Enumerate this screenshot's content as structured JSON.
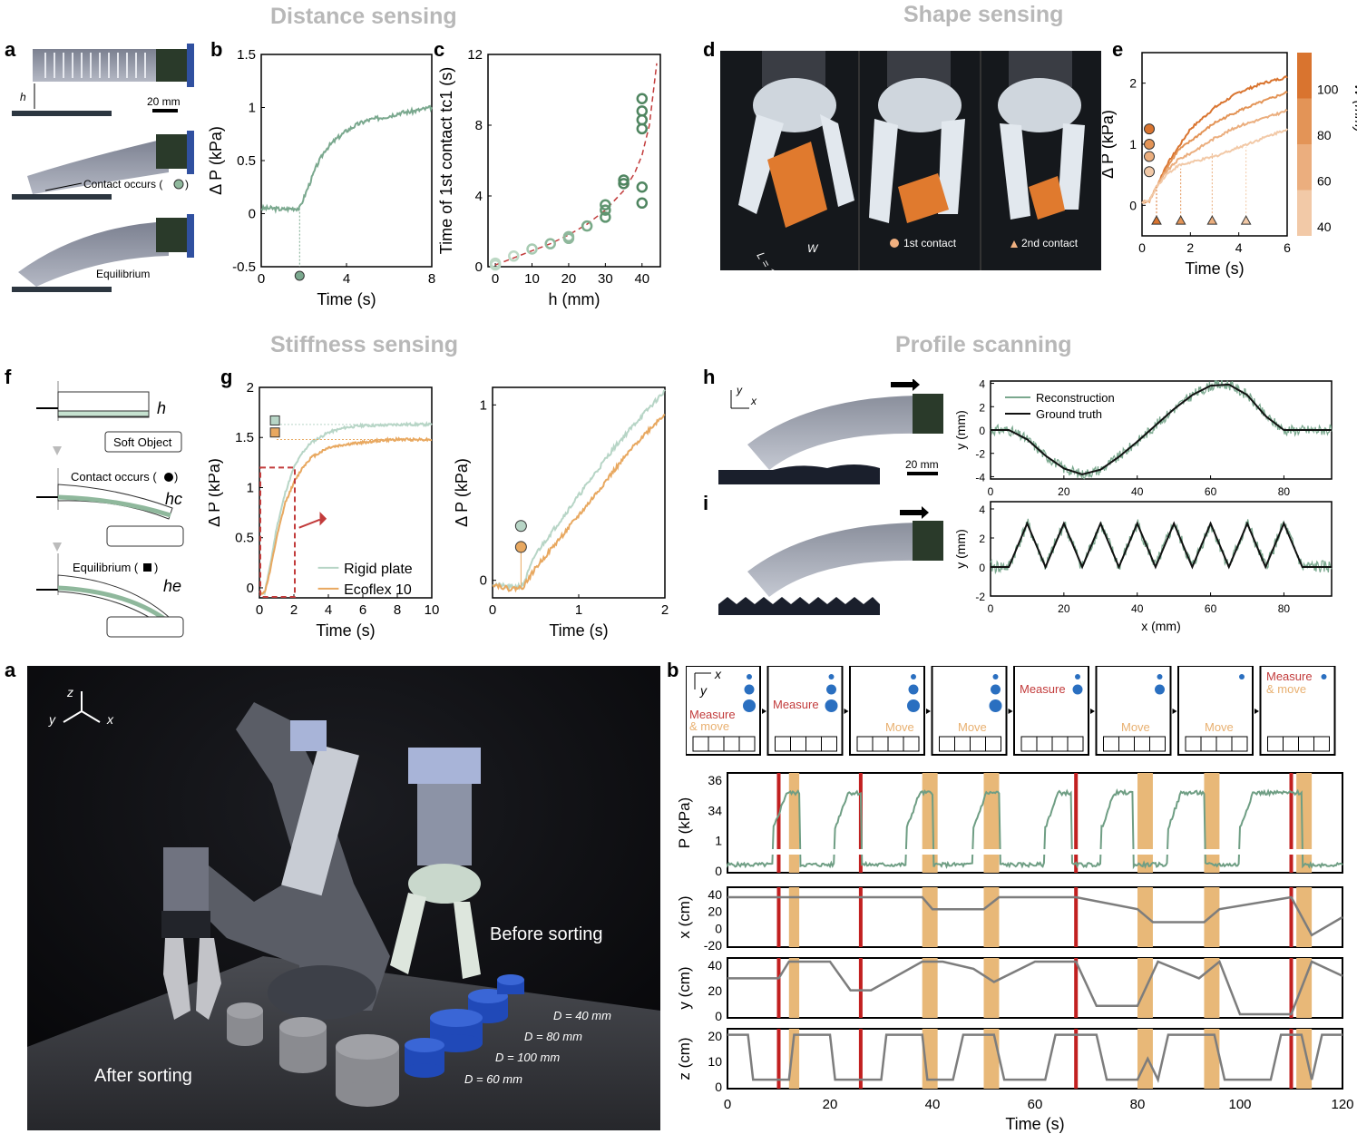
{
  "sections": {
    "distance": "Distance sensing",
    "shape": "Shape sensing",
    "stiffness": "Stiffness sensing",
    "profile": "Profile scanning"
  },
  "letters": {
    "a": "a",
    "b": "b",
    "c": "c",
    "d": "d",
    "e": "e",
    "f": "f",
    "g": "g",
    "h": "h",
    "i": "i",
    "a2": "a",
    "b2": "b"
  },
  "panel_a": {
    "h_label": "h",
    "scale": "20 mm",
    "contact": "Contact occurs (",
    "contact_end": ")",
    "equilibrium": "Equilibrium"
  },
  "panel_d": {
    "L": "L = 100 mm",
    "W": "W",
    "first_contact": "1st contact",
    "second_contact": "2nd contact"
  },
  "panel_f": {
    "h": "h",
    "soft_object": "Soft Object",
    "contact": "Contact occurs (",
    "contact_end": ")",
    "hc": "hc",
    "equilibrium": "Equilibrium (",
    "equilibrium_end": ")",
    "he": "he"
  },
  "panel_h": {
    "x": "x",
    "y": "y",
    "scale": "20 mm"
  },
  "photo_a2": {
    "z": "z",
    "y": "y",
    "x": "x",
    "before": "Before sorting",
    "after": "After sorting",
    "d40": "D = 40 mm",
    "d80": "D = 80 mm",
    "d100": "D = 100 mm",
    "d60": "D = 60 mm"
  },
  "panel_b2_diagrams": {
    "x": "x",
    "y": "y",
    "measure_move": [
      "Measure",
      "& move"
    ],
    "measure": "Measure",
    "move": "Move"
  },
  "chart_data": [
    {
      "id": "b",
      "type": "line",
      "xlabel": "Time (s)",
      "ylabel": "Δ P (kPa)",
      "xlim": [
        0,
        8
      ],
      "ylim": [
        -0.5,
        1.5
      ],
      "xticks": [
        "0",
        "4",
        "8"
      ],
      "yticks": [
        "-0.5",
        "0",
        "0.5",
        "1",
        "1.5"
      ],
      "series": [
        {
          "color": "#7aa88e",
          "x": [
            0,
            0.5,
            1,
            1.5,
            1.8,
            2.2,
            2.6,
            3,
            3.5,
            4,
            4.5,
            5,
            5.5,
            6,
            6.5,
            7,
            7.5,
            8
          ],
          "y": [
            0.05,
            0.05,
            0.04,
            0.05,
            0.05,
            0.25,
            0.45,
            0.6,
            0.7,
            0.78,
            0.84,
            0.88,
            0.9,
            0.92,
            0.95,
            0.96,
            0.98,
            1.0
          ]
        }
      ],
      "contact_marker_x": 1.8
    },
    {
      "id": "c",
      "type": "scatter",
      "xlabel": "h (mm)",
      "ylabel": "Time of 1st contact  tc1 (s)",
      "xlim": [
        -2,
        45
      ],
      "ylim": [
        0,
        12
      ],
      "xticks": [
        "0",
        "10",
        "20",
        "30",
        "40"
      ],
      "yticks": [
        "0",
        "4",
        "8",
        "12"
      ],
      "points": [
        [
          0,
          0.1
        ],
        [
          0,
          0.2
        ],
        [
          5,
          0.6
        ],
        [
          10,
          1.0
        ],
        [
          15,
          1.3
        ],
        [
          20,
          1.6
        ],
        [
          20,
          1.7
        ],
        [
          25,
          2.3
        ],
        [
          30,
          2.8
        ],
        [
          30,
          3.2
        ],
        [
          30,
          3.5
        ],
        [
          35,
          4.7
        ],
        [
          35,
          4.9
        ],
        [
          40,
          3.6
        ],
        [
          40,
          4.5
        ],
        [
          40,
          7.8
        ],
        [
          40,
          8.3
        ],
        [
          40,
          8.8
        ],
        [
          40,
          9.5
        ]
      ],
      "fit": {
        "x": [
          0,
          5,
          10,
          15,
          20,
          25,
          30,
          35,
          38,
          40,
          42,
          44
        ],
        "y": [
          0.1,
          0.5,
          0.9,
          1.3,
          1.8,
          2.4,
          3.2,
          4.3,
          5.3,
          6.3,
          8.0,
          11.5
        ]
      }
    },
    {
      "id": "e",
      "type": "line",
      "xlabel": "Time (s)",
      "ylabel": "Δ P (kPa)",
      "xlim": [
        0,
        6
      ],
      "ylim": [
        -0.5,
        2.5
      ],
      "xticks": [
        "0",
        "2",
        "4",
        "6"
      ],
      "yticks": [
        "0",
        "1",
        "2"
      ],
      "colorbar": {
        "label": "W (mm)",
        "ticks": [
          "40",
          "60",
          "80",
          "100"
        ]
      },
      "series": [
        {
          "name": "100",
          "color": "#d9742f",
          "x": [
            0,
            0.3,
            0.6,
            1,
            1.5,
            2,
            3,
            4,
            5,
            6
          ],
          "y": [
            0.05,
            0.07,
            0.3,
            0.65,
            0.95,
            1.25,
            1.6,
            1.85,
            2.0,
            2.1
          ]
        },
        {
          "name": "80",
          "color": "#e39457",
          "x": [
            0,
            0.3,
            0.6,
            1,
            1.5,
            2,
            3,
            4,
            5,
            6
          ],
          "y": [
            0.05,
            0.07,
            0.3,
            0.6,
            0.9,
            1.05,
            1.35,
            1.55,
            1.7,
            1.85
          ]
        },
        {
          "name": "60",
          "color": "#ebae7e",
          "x": [
            0,
            0.3,
            0.6,
            1,
            1.5,
            2,
            3,
            4,
            5,
            6
          ],
          "y": [
            0.05,
            0.07,
            0.3,
            0.55,
            0.75,
            0.85,
            1.1,
            1.3,
            1.42,
            1.55
          ]
        },
        {
          "name": "40",
          "color": "#f2c9a7",
          "x": [
            0,
            0.3,
            0.6,
            1,
            1.5,
            2,
            3,
            4,
            5,
            6
          ],
          "y": [
            0.05,
            0.07,
            0.3,
            0.5,
            0.65,
            0.7,
            0.8,
            0.95,
            1.1,
            1.25
          ]
        }
      ],
      "circles_y": [
        1.25,
        1.0,
        0.8,
        0.55
      ],
      "triangles_x": [
        0.6,
        1.6,
        2.9,
        4.3
      ]
    },
    {
      "id": "g",
      "type": "line",
      "xlabel": "Time (s)",
      "ylabel": "Δ P (kPa)",
      "xlim": [
        0,
        10
      ],
      "ylim": [
        -0.1,
        2
      ],
      "xticks": [
        "0",
        "2",
        "4",
        "6",
        "8",
        "10"
      ],
      "yticks": [
        "0",
        "0.5",
        "1",
        "1.5",
        "2"
      ],
      "series": [
        {
          "name": "Rigid plate",
          "color": "#b7d5c6",
          "x": [
            0,
            0.3,
            0.6,
            1,
            1.5,
            2,
            2.5,
            3,
            4,
            5,
            6,
            7,
            8,
            10
          ],
          "y": [
            -0.05,
            -0.05,
            0.2,
            0.6,
            0.95,
            1.2,
            1.35,
            1.45,
            1.55,
            1.6,
            1.62,
            1.62,
            1.63,
            1.63
          ]
        },
        {
          "name": "Ecoflex 10",
          "color": "#e8a860",
          "x": [
            0,
            0.3,
            0.6,
            1,
            1.5,
            2,
            2.5,
            3,
            4,
            5,
            6,
            7,
            8,
            10
          ],
          "y": [
            -0.05,
            -0.05,
            0.15,
            0.5,
            0.85,
            1.05,
            1.2,
            1.3,
            1.4,
            1.43,
            1.45,
            1.47,
            1.48,
            1.48
          ]
        }
      ],
      "legend": [
        "Rigid plate",
        "Ecoflex 10"
      ]
    },
    {
      "id": "g-zoom",
      "type": "line",
      "xlabel": "Time (s)",
      "ylabel": "Δ P (kPa)",
      "xlim": [
        0,
        2
      ],
      "ylim": [
        -0.1,
        1.1
      ],
      "xticks": [
        "0",
        "1",
        "2"
      ],
      "yticks": [
        "0",
        "1"
      ],
      "series": [
        {
          "name": "Rigid plate",
          "color": "#b7d5c6",
          "x": [
            0,
            0.2,
            0.35,
            0.5,
            0.8,
            1.1,
            1.4,
            1.7,
            2
          ],
          "y": [
            -0.02,
            -0.04,
            -0.03,
            0.15,
            0.35,
            0.55,
            0.75,
            0.92,
            1.08
          ]
        },
        {
          "name": "Ecoflex 10",
          "color": "#e8a860",
          "x": [
            0,
            0.2,
            0.35,
            0.5,
            0.8,
            1.1,
            1.4,
            1.7,
            2
          ],
          "y": [
            -0.02,
            -0.05,
            -0.04,
            0.07,
            0.25,
            0.43,
            0.62,
            0.8,
            0.95
          ]
        }
      ]
    },
    {
      "id": "h",
      "type": "line",
      "xlabel": "",
      "ylabel": "y (mm)",
      "xlim": [
        0,
        93
      ],
      "ylim": [
        -4.2,
        4.2
      ],
      "xticks": [
        "0",
        "20",
        "40",
        "60",
        "80"
      ],
      "yticks": [
        "-4",
        "-2",
        "0",
        "2",
        "4"
      ],
      "legend": [
        "Reconstruction",
        "Ground truth"
      ],
      "series": [
        {
          "name": "Reconstruction",
          "color": "#7aa88e",
          "kind": "sine-noisy"
        },
        {
          "name": "Ground truth",
          "color": "#111111",
          "x": [
            0,
            5,
            10,
            15,
            20,
            25,
            30,
            35,
            40,
            45,
            50,
            55,
            60,
            65,
            70,
            75,
            80,
            85,
            93
          ],
          "y": [
            0,
            0,
            -0.8,
            -2.2,
            -3.3,
            -3.8,
            -3.4,
            -2.3,
            -1.0,
            0.4,
            1.8,
            3.0,
            3.8,
            3.9,
            3.0,
            1.2,
            0,
            0,
            0
          ]
        }
      ]
    },
    {
      "id": "i",
      "type": "line",
      "xlabel": "x (mm)",
      "ylabel": "y (mm)",
      "xlim": [
        0,
        93
      ],
      "ylim": [
        -2,
        4.5
      ],
      "xticks": [
        "0",
        "20",
        "40",
        "60",
        "80"
      ],
      "yticks": [
        "-2",
        "0",
        "2",
        "4"
      ],
      "series": [
        {
          "name": "Reconstruction",
          "color": "#7aa88e",
          "kind": "triangle-noisy"
        },
        {
          "name": "Ground truth",
          "color": "#111111",
          "x": [
            0,
            5,
            10,
            15,
            20,
            25,
            30,
            35,
            40,
            45,
            50,
            55,
            60,
            65,
            70,
            75,
            80,
            85,
            93
          ],
          "y": [
            0,
            0,
            3,
            0,
            3,
            0,
            3,
            0,
            3,
            0,
            3,
            0,
            3,
            0,
            3,
            0,
            3,
            0,
            0
          ]
        }
      ]
    },
    {
      "id": "b2-P",
      "type": "line",
      "xlim": [
        0,
        120
      ],
      "ylabel": "P (kPa)",
      "yticks": [
        "36",
        "34",
        "1",
        "0"
      ],
      "red_lines_x": [
        10,
        26,
        68,
        110
      ],
      "orange_bands_x": [
        [
          12,
          14
        ],
        [
          38,
          41
        ],
        [
          50,
          53
        ],
        [
          80,
          83
        ],
        [
          93,
          96
        ],
        [
          111,
          114
        ]
      ]
    },
    {
      "id": "b2-x",
      "type": "line",
      "ylabel": "x (cm)",
      "ylim": [
        -20,
        40
      ],
      "yticks": [
        "40",
        "20",
        "0",
        "-20"
      ],
      "x": [
        0,
        10,
        12,
        38,
        40,
        50,
        53,
        68,
        80,
        83,
        93,
        96,
        110,
        114,
        120
      ],
      "y": [
        30,
        30,
        30,
        30,
        18,
        18,
        30,
        30,
        18,
        5,
        5,
        18,
        30,
        -8,
        10
      ]
    },
    {
      "id": "b2-y",
      "type": "line",
      "ylabel": "y (cm)",
      "ylim": [
        -5,
        45
      ],
      "yticks": [
        "40",
        "20",
        "0"
      ],
      "x": [
        0,
        10,
        12,
        20,
        24,
        28,
        38,
        42,
        48,
        52,
        60,
        68,
        72,
        80,
        84,
        92,
        96,
        100,
        110,
        114,
        120
      ],
      "y": [
        28,
        28,
        42,
        42,
        18,
        18,
        42,
        42,
        36,
        25,
        42,
        42,
        5,
        5,
        42,
        28,
        42,
        -2,
        -2,
        42,
        30
      ]
    },
    {
      "id": "b2-z",
      "type": "line",
      "xlabel": "Time (s)",
      "ylabel": "z (cm)",
      "xlim": [
        0,
        120
      ],
      "ylim": [
        0,
        20
      ],
      "xticks": [
        "0",
        "20",
        "40",
        "60",
        "80",
        "100",
        "120"
      ],
      "yticks": [
        "20",
        "10",
        "0"
      ]
    }
  ]
}
